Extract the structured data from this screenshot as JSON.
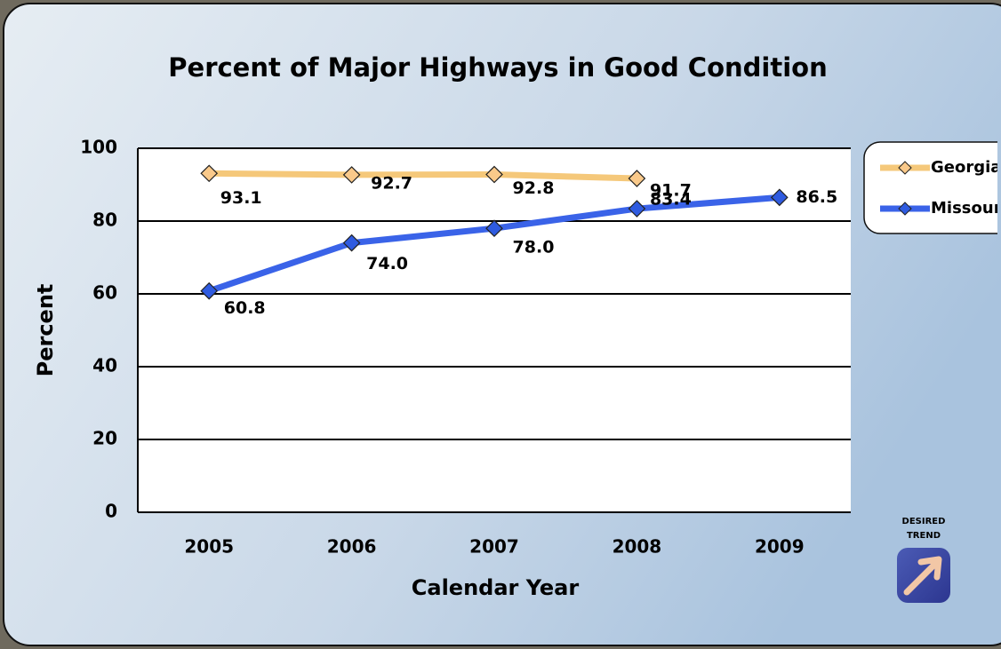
{
  "chart_data": {
    "type": "line",
    "title": "Percent of Major Highways in Good Condition",
    "x_label": "Calendar Year",
    "y_label": "Percent",
    "categories": [
      "2005",
      "2006",
      "2007",
      "2008",
      "2009"
    ],
    "series": [
      {
        "name": "Georgia",
        "color": "#f5c87a",
        "marker_color": "#f9c98a",
        "values": [
          93.1,
          92.7,
          92.8,
          91.7,
          null
        ],
        "value_labels": [
          "93.1",
          "92.7",
          "92.8",
          "91.7",
          null
        ]
      },
      {
        "name": "Missouri",
        "color": "#3a63e8",
        "marker_color": "#2f5be0",
        "values": [
          60.8,
          74.0,
          78.0,
          83.4,
          86.5
        ],
        "value_labels": [
          "60.8",
          "74.0",
          "78.0",
          "83.4",
          "86.5"
        ]
      }
    ],
    "ylim": [
      0,
      100
    ],
    "yticks": [
      0,
      20,
      40,
      60,
      80,
      100
    ],
    "grid": true,
    "legend": "right",
    "annotations": [
      "DESIRED",
      "TREND"
    ]
  }
}
